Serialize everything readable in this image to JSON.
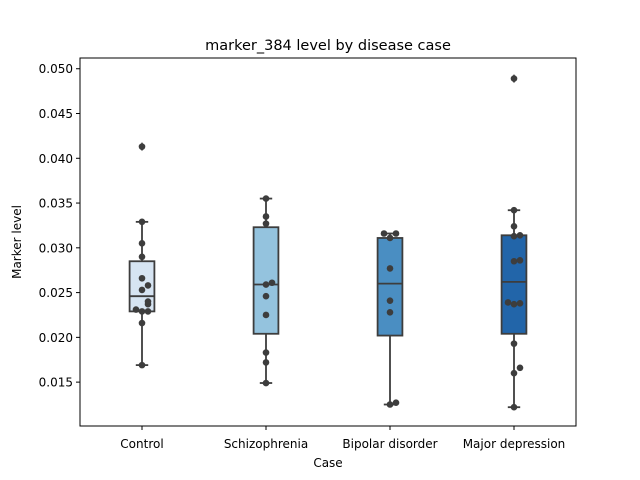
{
  "chart_data": {
    "type": "box",
    "title": "marker_384 level by disease case",
    "xlabel": "Case",
    "ylabel": "Marker level",
    "ylim": [
      0.0101,
      0.0512
    ],
    "yticks": [
      0.015,
      0.02,
      0.025,
      0.03,
      0.035,
      0.04,
      0.045,
      0.05
    ],
    "ytick_labels": [
      "0.015",
      "0.020",
      "0.025",
      "0.030",
      "0.035",
      "0.040",
      "0.045",
      "0.050"
    ],
    "grid": false,
    "categories": [
      "Control",
      "Schizophrenia",
      "Bipolar disorder",
      "Major depression"
    ],
    "colors": [
      "#d6e4f2",
      "#94c3de",
      "#4a8ec2",
      "#2265a9"
    ],
    "boxes": [
      {
        "category": "Control",
        "whisker_low": 0.0169,
        "q1": 0.0229,
        "median": 0.0246,
        "q3": 0.0285,
        "whisker_high": 0.0329,
        "fliers": [
          0.0413
        ]
      },
      {
        "category": "Schizophrenia",
        "whisker_low": 0.0149,
        "q1": 0.0204,
        "median": 0.0259,
        "q3": 0.0323,
        "whisker_high": 0.0355,
        "fliers": []
      },
      {
        "category": "Bipolar disorder",
        "whisker_low": 0.0125,
        "q1": 0.0202,
        "median": 0.026,
        "q3": 0.0311,
        "whisker_high": 0.0316,
        "fliers": []
      },
      {
        "category": "Major depression",
        "whisker_low": 0.0122,
        "q1": 0.0204,
        "median": 0.0262,
        "q3": 0.0314,
        "whisker_high": 0.0342,
        "fliers": [
          0.0489
        ]
      }
    ],
    "points": [
      {
        "category": "Control",
        "values": [
          0.0169,
          0.0216,
          0.0229,
          0.0229,
          0.0231,
          0.0237,
          0.024,
          0.0253,
          0.0258,
          0.0266,
          0.029,
          0.0305,
          0.0329,
          0.0413
        ]
      },
      {
        "category": "Schizophrenia",
        "values": [
          0.0149,
          0.0172,
          0.0183,
          0.0225,
          0.0246,
          0.0259,
          0.0261,
          0.0327,
          0.0335,
          0.0355
        ]
      },
      {
        "category": "Bipolar disorder",
        "values": [
          0.0125,
          0.0127,
          0.0228,
          0.0241,
          0.0277,
          0.0311,
          0.0316,
          0.0316
        ]
      },
      {
        "category": "Major depression",
        "values": [
          0.0122,
          0.016,
          0.0166,
          0.0193,
          0.0237,
          0.0238,
          0.0239,
          0.0285,
          0.0286,
          0.0313,
          0.0314,
          0.0324,
          0.0342,
          0.0489
        ]
      }
    ]
  }
}
